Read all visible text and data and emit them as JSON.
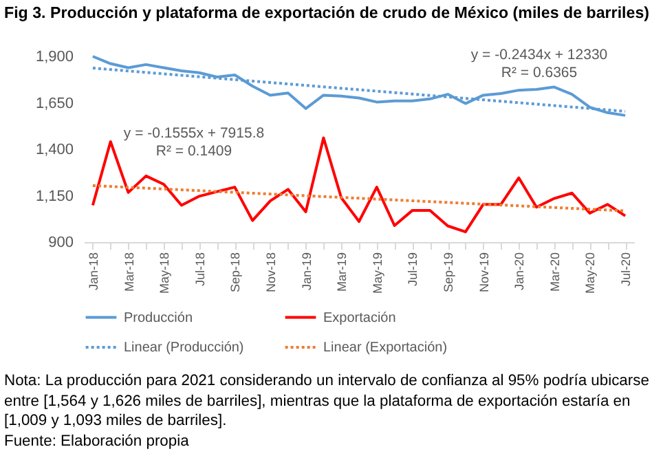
{
  "chart_data": {
    "type": "line",
    "title": "Fig 3. Producción y plataforma de exportación de crudo de México (miles de barriles)",
    "categories": [
      "Jan-18",
      null,
      "Mar-18",
      null,
      "May-18",
      null,
      "Jul-18",
      null,
      "Sep-18",
      null,
      "Nov-18",
      null,
      "Jan-19",
      null,
      "Mar-19",
      null,
      "May-19",
      null,
      "Jul-19",
      null,
      "Sep-19",
      null,
      "Nov-19",
      null,
      "Jan-20",
      null,
      "Mar-20",
      null,
      "May-20",
      null,
      "Jul-20"
    ],
    "series": [
      {
        "name": "Producción",
        "color": "#5b9bd5",
        "line_style": "solid",
        "values": [
          1900,
          1861,
          1839,
          1856,
          1839,
          1822,
          1812,
          1789,
          1800,
          1740,
          1691,
          1703,
          1619,
          1691,
          1686,
          1676,
          1654,
          1660,
          1660,
          1671,
          1696,
          1646,
          1691,
          1700,
          1718,
          1722,
          1735,
          1696,
          1626,
          1597,
          1582
        ]
      },
      {
        "name": "Exportación",
        "color": "#ff0000",
        "line_style": "solid",
        "values": [
          1098,
          1441,
          1167,
          1256,
          1211,
          1098,
          1147,
          1172,
          1196,
          1016,
          1122,
          1184,
          1063,
          1461,
          1139,
          1011,
          1196,
          989,
          1070,
          1070,
          987,
          955,
          1103,
          1103,
          1246,
          1088,
          1135,
          1164,
          1056,
          1103,
          1041
        ]
      },
      {
        "name": "Linear (Producción)",
        "color": "#5b9bd5",
        "line_style": "dotted",
        "x": [
          "Jan-18",
          "Jul-20"
        ],
        "values": [
          1837,
          1604
        ]
      },
      {
        "name": "Linear (Exportación)",
        "color": "#ed7d31",
        "line_style": "dotted",
        "x": [
          "Jan-18",
          "Jul-20"
        ],
        "values": [
          1204,
          1068
        ]
      }
    ],
    "ylim": [
      900,
      1900
    ],
    "yticks": [
      900,
      {
        "value": 1150,
        "label": "1,150"
      },
      {
        "value": 1400,
        "label": "1,400"
      },
      {
        "value": 1650,
        "label": "1,650"
      },
      {
        "value": 1900,
        "label": "1,900"
      }
    ],
    "grid": false,
    "legend": "bottom",
    "annotations": [
      "y = -0.2434x + 12330\nR² = 0.6365",
      "y = -0.1555x + 7915.8\nR² = 0.1409",
      "Nota: La producción para 2021 considerando un intervalo de confianza al 95% podría ubicarse entre [1,564 y 1,626 miles de barriles], mientras que la plataforma de exportación estaría en [1,009 y 1,093 miles de barriles].",
      "Fuente: Elaboración propia"
    ]
  }
}
